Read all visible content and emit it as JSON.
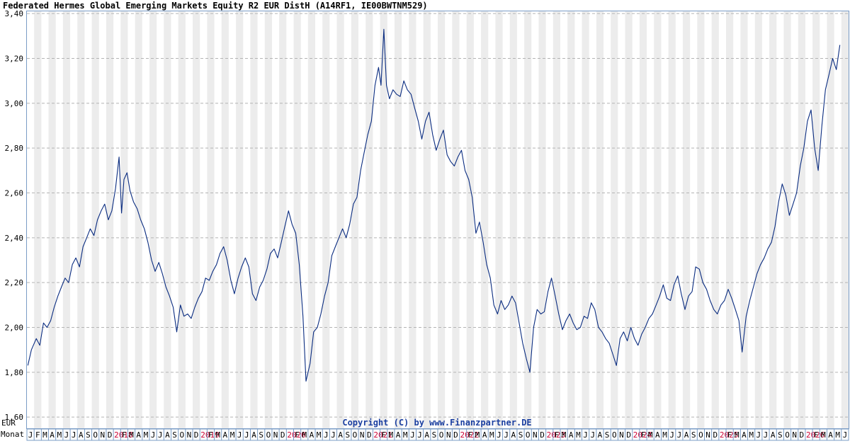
{
  "header": {
    "title": "Federated Hermes Global Emerging Markets Equity R2 EUR DistH (A14RF1, IE00BWTNM529)"
  },
  "colors": {
    "line": "#0a2c80",
    "stripe": "#ececec",
    "grid": "#b4b4b4",
    "frame": "#7a9cc6",
    "year_label": "#cc0033",
    "copyright": "#1b3fa0"
  },
  "chart_data": {
    "type": "line",
    "title": "Federated Hermes Global Emerging Markets Equity R2 EUR DistH (A14RF1, IE00BWTNM529)",
    "ylabel": "EUR",
    "xlabel": "Monat",
    "ylim": [
      1.55,
      3.41
    ],
    "y_ticks": [
      1.6,
      1.8,
      2.0,
      2.2,
      2.4,
      2.6,
      2.8,
      3.0,
      3.2,
      3.4
    ],
    "y_tick_labels": [
      "1,60",
      "1,80",
      "2,00",
      "2,20",
      "2,40",
      "2,60",
      "2,80",
      "3,00",
      "3,20",
      "3,40"
    ],
    "grid": true,
    "copyright": "Copyright (C) by www.Finanzpartner.DE",
    "x_start": "2017-01",
    "x_end": "2026-06",
    "month_labels": [
      "J",
      "F",
      "M",
      "A",
      "M",
      "J",
      "J",
      "A",
      "S",
      "O",
      "N",
      "D",
      "2018",
      "F",
      "M",
      "A",
      "M",
      "J",
      "J",
      "A",
      "S",
      "O",
      "N",
      "D",
      "2019",
      "F",
      "M",
      "A",
      "M",
      "J",
      "J",
      "A",
      "S",
      "O",
      "N",
      "D",
      "2020",
      "F",
      "M",
      "A",
      "M",
      "J",
      "J",
      "A",
      "S",
      "O",
      "N",
      "D",
      "2021",
      "F",
      "M",
      "A",
      "M",
      "J",
      "J",
      "A",
      "S",
      "O",
      "N",
      "D",
      "2022",
      "F",
      "M",
      "A",
      "M",
      "J",
      "J",
      "A",
      "S",
      "O",
      "N",
      "D",
      "2023",
      "F",
      "M",
      "A",
      "M",
      "J",
      "J",
      "A",
      "S",
      "O",
      "N",
      "D",
      "2024",
      "F",
      "M",
      "A",
      "M",
      "J",
      "J",
      "A",
      "S",
      "O",
      "N",
      "D",
      "2025",
      "F",
      "M",
      "A",
      "M",
      "J",
      "J",
      "A",
      "S",
      "O",
      "N",
      "D",
      "2026",
      "F",
      "M",
      "A",
      "M",
      "J"
    ],
    "series": [
      {
        "points": [
          [
            "2017-01-05",
            1.83
          ],
          [
            "2017-01-20",
            1.9
          ],
          [
            "2017-02-10",
            1.95
          ],
          [
            "2017-02-25",
            1.92
          ],
          [
            "2017-03-10",
            2.02
          ],
          [
            "2017-03-25",
            2.0
          ],
          [
            "2017-04-10",
            2.03
          ],
          [
            "2017-04-25",
            2.09
          ],
          [
            "2017-05-10",
            2.14
          ],
          [
            "2017-05-25",
            2.18
          ],
          [
            "2017-06-10",
            2.22
          ],
          [
            "2017-06-25",
            2.2
          ],
          [
            "2017-07-10",
            2.28
          ],
          [
            "2017-07-25",
            2.31
          ],
          [
            "2017-08-10",
            2.27
          ],
          [
            "2017-08-25",
            2.36
          ],
          [
            "2017-09-10",
            2.4
          ],
          [
            "2017-09-25",
            2.44
          ],
          [
            "2017-10-10",
            2.41
          ],
          [
            "2017-10-25",
            2.48
          ],
          [
            "2017-11-10",
            2.52
          ],
          [
            "2017-11-25",
            2.55
          ],
          [
            "2017-12-10",
            2.48
          ],
          [
            "2017-12-25",
            2.52
          ],
          [
            "2018-01-10",
            2.62
          ],
          [
            "2018-01-25",
            2.76
          ],
          [
            "2018-02-05",
            2.51
          ],
          [
            "2018-02-15",
            2.66
          ],
          [
            "2018-02-28",
            2.69
          ],
          [
            "2018-03-10",
            2.61
          ],
          [
            "2018-03-25",
            2.56
          ],
          [
            "2018-04-10",
            2.53
          ],
          [
            "2018-04-25",
            2.48
          ],
          [
            "2018-05-10",
            2.44
          ],
          [
            "2018-05-25",
            2.38
          ],
          [
            "2018-06-10",
            2.3
          ],
          [
            "2018-06-25",
            2.25
          ],
          [
            "2018-07-10",
            2.29
          ],
          [
            "2018-07-25",
            2.24
          ],
          [
            "2018-08-10",
            2.18
          ],
          [
            "2018-08-25",
            2.14
          ],
          [
            "2018-09-10",
            2.09
          ],
          [
            "2018-09-25",
            1.98
          ],
          [
            "2018-10-10",
            2.1
          ],
          [
            "2018-10-25",
            2.05
          ],
          [
            "2018-11-10",
            2.06
          ],
          [
            "2018-11-25",
            2.04
          ],
          [
            "2018-12-10",
            2.09
          ],
          [
            "2018-12-25",
            2.13
          ],
          [
            "2019-01-10",
            2.16
          ],
          [
            "2019-01-25",
            2.22
          ],
          [
            "2019-02-10",
            2.21
          ],
          [
            "2019-02-25",
            2.25
          ],
          [
            "2019-03-10",
            2.28
          ],
          [
            "2019-03-25",
            2.33
          ],
          [
            "2019-04-10",
            2.36
          ],
          [
            "2019-04-25",
            2.3
          ],
          [
            "2019-05-10",
            2.21
          ],
          [
            "2019-05-25",
            2.15
          ],
          [
            "2019-06-10",
            2.22
          ],
          [
            "2019-06-25",
            2.27
          ],
          [
            "2019-07-10",
            2.31
          ],
          [
            "2019-07-25",
            2.27
          ],
          [
            "2019-08-10",
            2.15
          ],
          [
            "2019-08-25",
            2.12
          ],
          [
            "2019-09-10",
            2.18
          ],
          [
            "2019-09-25",
            2.21
          ],
          [
            "2019-10-10",
            2.26
          ],
          [
            "2019-10-25",
            2.33
          ],
          [
            "2019-11-10",
            2.35
          ],
          [
            "2019-11-25",
            2.31
          ],
          [
            "2019-12-10",
            2.38
          ],
          [
            "2019-12-25",
            2.45
          ],
          [
            "2020-01-10",
            2.52
          ],
          [
            "2020-01-25",
            2.46
          ],
          [
            "2020-02-10",
            2.42
          ],
          [
            "2020-02-25",
            2.28
          ],
          [
            "2020-03-10",
            2.05
          ],
          [
            "2020-03-23",
            1.76
          ],
          [
            "2020-04-10",
            1.84
          ],
          [
            "2020-04-25",
            1.98
          ],
          [
            "2020-05-10",
            2.0
          ],
          [
            "2020-05-25",
            2.06
          ],
          [
            "2020-06-10",
            2.14
          ],
          [
            "2020-06-25",
            2.2
          ],
          [
            "2020-07-10",
            2.32
          ],
          [
            "2020-07-25",
            2.36
          ],
          [
            "2020-08-10",
            2.4
          ],
          [
            "2020-08-25",
            2.44
          ],
          [
            "2020-09-10",
            2.4
          ],
          [
            "2020-09-25",
            2.46
          ],
          [
            "2020-10-10",
            2.55
          ],
          [
            "2020-10-25",
            2.58
          ],
          [
            "2020-11-10",
            2.7
          ],
          [
            "2020-11-25",
            2.78
          ],
          [
            "2020-12-10",
            2.86
          ],
          [
            "2020-12-25",
            2.92
          ],
          [
            "2021-01-10",
            3.08
          ],
          [
            "2021-01-25",
            3.16
          ],
          [
            "2021-02-05",
            3.08
          ],
          [
            "2021-02-17",
            3.33
          ],
          [
            "2021-02-28",
            3.08
          ],
          [
            "2021-03-10",
            3.02
          ],
          [
            "2021-03-25",
            3.06
          ],
          [
            "2021-04-10",
            3.04
          ],
          [
            "2021-04-25",
            3.03
          ],
          [
            "2021-05-10",
            3.1
          ],
          [
            "2021-05-25",
            3.06
          ],
          [
            "2021-06-10",
            3.04
          ],
          [
            "2021-06-25",
            2.98
          ],
          [
            "2021-07-10",
            2.92
          ],
          [
            "2021-07-25",
            2.84
          ],
          [
            "2021-08-10",
            2.92
          ],
          [
            "2021-08-25",
            2.96
          ],
          [
            "2021-09-10",
            2.86
          ],
          [
            "2021-09-25",
            2.79
          ],
          [
            "2021-10-10",
            2.84
          ],
          [
            "2021-10-25",
            2.88
          ],
          [
            "2021-11-10",
            2.77
          ],
          [
            "2021-11-25",
            2.74
          ],
          [
            "2021-12-10",
            2.72
          ],
          [
            "2021-12-25",
            2.76
          ],
          [
            "2022-01-10",
            2.79
          ],
          [
            "2022-01-25",
            2.7
          ],
          [
            "2022-02-10",
            2.66
          ],
          [
            "2022-02-25",
            2.58
          ],
          [
            "2022-03-10",
            2.42
          ],
          [
            "2022-03-25",
            2.47
          ],
          [
            "2022-04-10",
            2.38
          ],
          [
            "2022-04-25",
            2.28
          ],
          [
            "2022-05-10",
            2.22
          ],
          [
            "2022-05-25",
            2.1
          ],
          [
            "2022-06-10",
            2.06
          ],
          [
            "2022-06-25",
            2.12
          ],
          [
            "2022-07-10",
            2.08
          ],
          [
            "2022-07-25",
            2.1
          ],
          [
            "2022-08-10",
            2.14
          ],
          [
            "2022-08-25",
            2.11
          ],
          [
            "2022-09-10",
            2.02
          ],
          [
            "2022-09-25",
            1.93
          ],
          [
            "2022-10-10",
            1.86
          ],
          [
            "2022-10-25",
            1.8
          ],
          [
            "2022-11-10",
            2.0
          ],
          [
            "2022-11-25",
            2.08
          ],
          [
            "2022-12-10",
            2.06
          ],
          [
            "2022-12-25",
            2.07
          ],
          [
            "2023-01-10",
            2.16
          ],
          [
            "2023-01-25",
            2.22
          ],
          [
            "2023-02-10",
            2.14
          ],
          [
            "2023-02-25",
            2.06
          ],
          [
            "2023-03-10",
            1.99
          ],
          [
            "2023-03-25",
            2.03
          ],
          [
            "2023-04-10",
            2.06
          ],
          [
            "2023-04-25",
            2.02
          ],
          [
            "2023-05-10",
            1.99
          ],
          [
            "2023-05-25",
            2.0
          ],
          [
            "2023-06-10",
            2.05
          ],
          [
            "2023-06-25",
            2.04
          ],
          [
            "2023-07-10",
            2.11
          ],
          [
            "2023-07-25",
            2.08
          ],
          [
            "2023-08-10",
            2.0
          ],
          [
            "2023-08-25",
            1.98
          ],
          [
            "2023-09-10",
            1.95
          ],
          [
            "2023-09-25",
            1.93
          ],
          [
            "2023-10-10",
            1.88
          ],
          [
            "2023-10-25",
            1.83
          ],
          [
            "2023-11-10",
            1.95
          ],
          [
            "2023-11-25",
            1.98
          ],
          [
            "2023-12-10",
            1.94
          ],
          [
            "2023-12-25",
            2.0
          ],
          [
            "2024-01-10",
            1.95
          ],
          [
            "2024-01-25",
            1.92
          ],
          [
            "2024-02-10",
            1.97
          ],
          [
            "2024-02-25",
            2.0
          ],
          [
            "2024-03-10",
            2.04
          ],
          [
            "2024-03-25",
            2.06
          ],
          [
            "2024-04-10",
            2.1
          ],
          [
            "2024-04-25",
            2.14
          ],
          [
            "2024-05-10",
            2.19
          ],
          [
            "2024-05-25",
            2.13
          ],
          [
            "2024-06-10",
            2.12
          ],
          [
            "2024-06-25",
            2.19
          ],
          [
            "2024-07-10",
            2.23
          ],
          [
            "2024-07-25",
            2.15
          ],
          [
            "2024-08-10",
            2.08
          ],
          [
            "2024-08-25",
            2.14
          ],
          [
            "2024-09-10",
            2.16
          ],
          [
            "2024-09-25",
            2.27
          ],
          [
            "2024-10-10",
            2.26
          ],
          [
            "2024-10-25",
            2.2
          ],
          [
            "2024-11-10",
            2.17
          ],
          [
            "2024-11-25",
            2.12
          ],
          [
            "2024-12-10",
            2.08
          ],
          [
            "2024-12-25",
            2.06
          ],
          [
            "2025-01-10",
            2.1
          ],
          [
            "2025-01-25",
            2.12
          ],
          [
            "2025-02-10",
            2.17
          ],
          [
            "2025-02-25",
            2.13
          ],
          [
            "2025-03-10",
            2.08
          ],
          [
            "2025-03-25",
            2.03
          ],
          [
            "2025-04-08",
            1.89
          ],
          [
            "2025-04-25",
            2.05
          ],
          [
            "2025-05-10",
            2.12
          ],
          [
            "2025-05-25",
            2.18
          ],
          [
            "2025-06-10",
            2.24
          ],
          [
            "2025-06-25",
            2.28
          ],
          [
            "2025-07-10",
            2.31
          ],
          [
            "2025-07-25",
            2.35
          ],
          [
            "2025-08-10",
            2.38
          ],
          [
            "2025-08-25",
            2.45
          ],
          [
            "2025-09-10",
            2.56
          ],
          [
            "2025-09-25",
            2.64
          ],
          [
            "2025-10-10",
            2.59
          ],
          [
            "2025-10-25",
            2.5
          ],
          [
            "2025-11-10",
            2.55
          ],
          [
            "2025-11-25",
            2.6
          ],
          [
            "2025-12-10",
            2.72
          ],
          [
            "2025-12-25",
            2.8
          ],
          [
            "2026-01-10",
            2.92
          ],
          [
            "2026-01-25",
            2.97
          ],
          [
            "2026-02-10",
            2.8
          ],
          [
            "2026-02-25",
            2.7
          ],
          [
            "2026-03-10",
            2.9
          ],
          [
            "2026-03-25",
            3.06
          ],
          [
            "2026-04-10",
            3.13
          ],
          [
            "2026-04-25",
            3.2
          ],
          [
            "2026-05-10",
            3.15
          ],
          [
            "2026-05-25",
            3.26
          ]
        ]
      }
    ]
  }
}
